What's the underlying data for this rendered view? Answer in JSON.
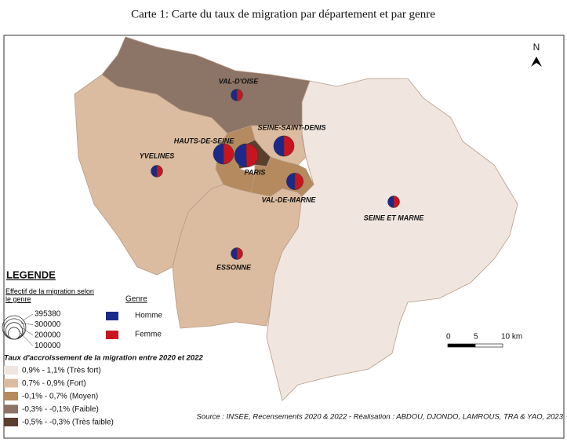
{
  "title": "Carte 1: Carte du taux de migration par département et par genre",
  "north": "N",
  "classes": {
    "title": "Taux d'accroissement de la migration entre 2020 et 2022",
    "items": [
      {
        "label": "0,9% - 1,1% (Très fort)",
        "color": "#f0e6df"
      },
      {
        "label": "0,7% - 0,9% (Fort)",
        "color": "#dcbca0"
      },
      {
        "label": "-0,1% - 0,7% (Moyen)",
        "color": "#b48a5e"
      },
      {
        "label": "-0,3% - -0,1% (Faible)",
        "color": "#8c7466"
      },
      {
        "label": "-0,5% - -0,3% (Très faible)",
        "color": "#5a3e2e"
      }
    ]
  },
  "legend": {
    "title": "LEGENDE",
    "size_title": "Effectif de la migration selon le genre",
    "sizes": [
      395380,
      300000,
      200000,
      100000
    ],
    "genre_title": "Genre",
    "genres": [
      {
        "name": "Homme",
        "color": "#1b2a8a"
      },
      {
        "name": "Femme",
        "color": "#c8141e"
      }
    ]
  },
  "departments": [
    {
      "name": "SEINE ET MARNE",
      "class": 0,
      "homme": 50000,
      "femme": 50000
    },
    {
      "name": "VAL-D'OISE",
      "class": 3,
      "homme": 50000,
      "femme": 50000
    },
    {
      "name": "YVELINES",
      "class": 1,
      "homme": 50000,
      "femme": 50000
    },
    {
      "name": "ESSONNE",
      "class": 1,
      "homme": 50000,
      "femme": 50000
    },
    {
      "name": "SEINE-SAINT-DENIS",
      "class": 1,
      "homme": 150000,
      "femme": 150000
    },
    {
      "name": "HAUTS-DE-SEINE",
      "class": 2,
      "homme": 150000,
      "femme": 150000
    },
    {
      "name": "PARIS",
      "class": 4,
      "homme": 200000,
      "femme": 195380
    },
    {
      "name": "VAL-DE-MARNE",
      "class": 2,
      "homme": 100000,
      "femme": 100000
    }
  ],
  "scale_bar": {
    "ticks": [
      0,
      5,
      {
        "value": 10,
        "label": "10 km"
      }
    ]
  },
  "source": "Source : INSEE, Recensements 2020 & 2022 - Réalisation : ABDOU, DJONDO, LAMROUS, TRA & YAO, 2023"
}
